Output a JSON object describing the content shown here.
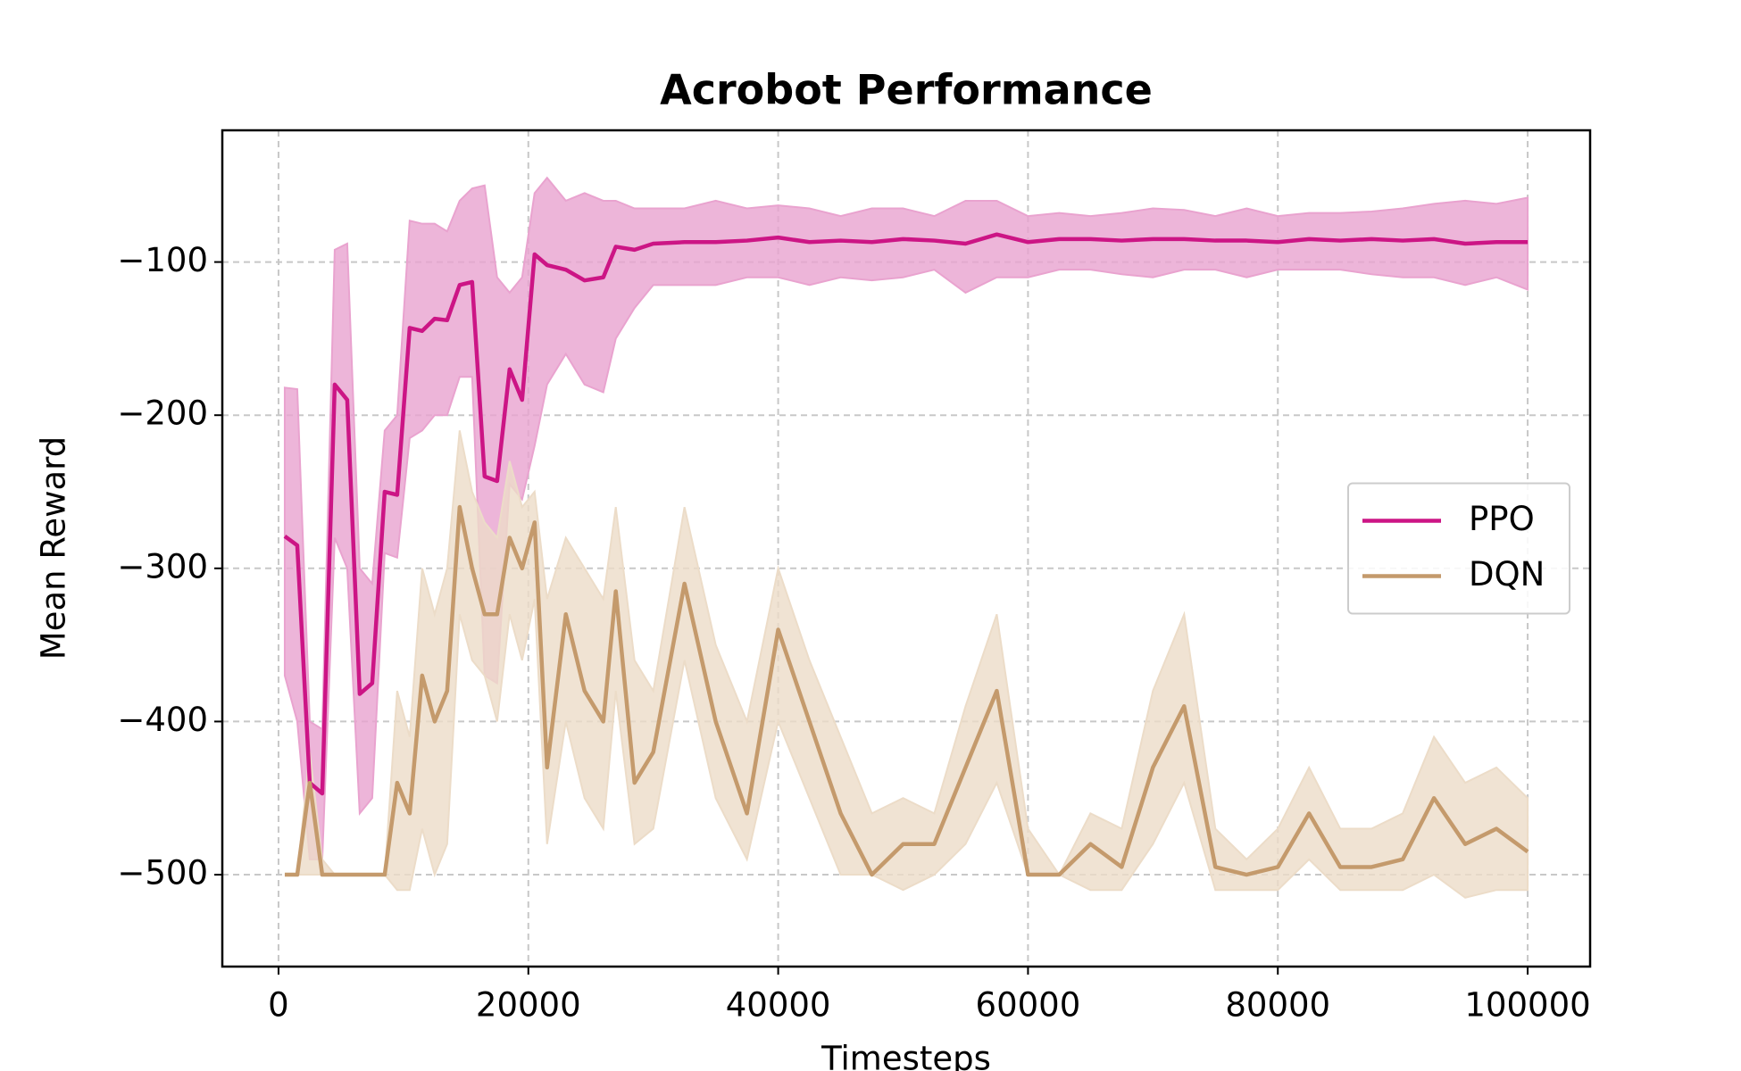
{
  "chart_data": {
    "type": "line",
    "title": "Acrobot Performance",
    "x_label": "Timesteps",
    "y_label": "Mean Reward",
    "x": [
      500,
      1500,
      2500,
      3500,
      4500,
      5500,
      6500,
      7500,
      8500,
      9500,
      10500,
      11500,
      12500,
      13500,
      14500,
      15500,
      16500,
      17500,
      18500,
      19500,
      20500,
      21500,
      23000,
      24500,
      26000,
      27000,
      28500,
      30000,
      32500,
      35000,
      37500,
      40000,
      42500,
      45000,
      47500,
      50000,
      52500,
      55000,
      57500,
      60000,
      62500,
      65000,
      67500,
      70000,
      72500,
      75000,
      77500,
      80000,
      82500,
      85000,
      87500,
      90000,
      92500,
      95000,
      97500,
      100000
    ],
    "series": [
      {
        "name": "PPO",
        "color": "#cc1585",
        "band_color": "#e9a3cf",
        "values": [
          -279,
          -285,
          -440,
          -447,
          -180,
          -190,
          -382,
          -375,
          -250,
          -252,
          -143,
          -145,
          -137,
          -138,
          -115,
          -113,
          -240,
          -243,
          -170,
          -190,
          -95,
          -102,
          -105,
          -112,
          -110,
          -90,
          -92,
          -88,
          -87,
          -87,
          -86,
          -84,
          -87,
          -86,
          -87,
          -85,
          -86,
          -88,
          -82,
          -87,
          -85,
          -85,
          -86,
          -85,
          -85,
          -86,
          -86,
          -87,
          -85,
          -86,
          -85,
          -86,
          -85,
          -88,
          -87,
          -87
        ],
        "upper": [
          -182,
          -183,
          -400,
          -405,
          -92,
          -88,
          -300,
          -310,
          -210,
          -200,
          -73,
          -75,
          -75,
          -80,
          -60,
          -52,
          -50,
          -110,
          -120,
          -110,
          -55,
          -45,
          -60,
          -55,
          -60,
          -60,
          -65,
          -65,
          -65,
          -60,
          -65,
          -63,
          -65,
          -70,
          -65,
          -65,
          -70,
          -60,
          -60,
          -70,
          -68,
          -70,
          -68,
          -65,
          -66,
          -70,
          -65,
          -70,
          -68,
          -68,
          -67,
          -65,
          -62,
          -60,
          -62,
          -58
        ],
        "lower": [
          -370,
          -400,
          -490,
          -490,
          -280,
          -300,
          -460,
          -450,
          -290,
          -293,
          -215,
          -210,
          -200,
          -200,
          -175,
          -175,
          -370,
          -375,
          -245,
          -255,
          -220,
          -180,
          -160,
          -180,
          -185,
          -150,
          -130,
          -115,
          -115,
          -115,
          -110,
          -110,
          -115,
          -110,
          -112,
          -110,
          -105,
          -120,
          -110,
          -110,
          -105,
          -105,
          -108,
          -110,
          -105,
          -105,
          -110,
          -105,
          -105,
          -105,
          -108,
          -110,
          -110,
          -115,
          -110,
          -118
        ]
      },
      {
        "name": "DQN",
        "color": "#c49a6c",
        "band_color": "#ecdcc8",
        "values": [
          -500,
          -500,
          -440,
          -500,
          -500,
          -500,
          -500,
          -500,
          -500,
          -440,
          -460,
          -370,
          -400,
          -380,
          -260,
          -300,
          -330,
          -330,
          -280,
          -300,
          -270,
          -430,
          -330,
          -380,
          -400,
          -315,
          -440,
          -420,
          -310,
          -400,
          -460,
          -340,
          -400,
          -460,
          -500,
          -480,
          -480,
          -430,
          -380,
          -500,
          -500,
          -480,
          -495,
          -430,
          -390,
          -495,
          -500,
          -495,
          -460,
          -495,
          -495,
          -490,
          -450,
          -480,
          -470,
          -485
        ],
        "upper": [
          -500,
          -500,
          -420,
          -490,
          -500,
          -500,
          -500,
          -500,
          -500,
          -380,
          -410,
          -300,
          -330,
          -300,
          -210,
          -250,
          -270,
          -280,
          -230,
          -260,
          -250,
          -320,
          -280,
          -300,
          -320,
          -260,
          -360,
          -380,
          -260,
          -350,
          -400,
          -300,
          -360,
          -410,
          -460,
          -450,
          -460,
          -390,
          -330,
          -470,
          -500,
          -460,
          -470,
          -380,
          -330,
          -470,
          -490,
          -470,
          -430,
          -470,
          -470,
          -460,
          -410,
          -440,
          -430,
          -450
        ],
        "lower": [
          -500,
          -500,
          -500,
          -500,
          -500,
          -500,
          -500,
          -500,
          -500,
          -510,
          -510,
          -470,
          -500,
          -480,
          -330,
          -360,
          -370,
          -400,
          -330,
          -360,
          -320,
          -480,
          -400,
          -450,
          -470,
          -380,
          -480,
          -470,
          -360,
          -450,
          -490,
          -400,
          -450,
          -500,
          -500,
          -510,
          -500,
          -480,
          -440,
          -500,
          -500,
          -510,
          -510,
          -480,
          -440,
          -510,
          -510,
          -510,
          -490,
          -510,
          -510,
          -510,
          -500,
          -515,
          -510,
          -510
        ]
      }
    ],
    "xlim": [
      -4500,
      105000
    ],
    "ylim": [
      -560,
      -14
    ],
    "xticks": [
      0,
      20000,
      40000,
      60000,
      80000,
      100000
    ],
    "yticks": [
      {
        "value": -500,
        "label": "−500"
      },
      {
        "value": -400,
        "label": "−400"
      },
      {
        "value": -300,
        "label": "−300"
      },
      {
        "value": -200,
        "label": "−200"
      },
      {
        "value": -100,
        "label": "−100"
      }
    ],
    "grid": true,
    "legend": "center right"
  }
}
